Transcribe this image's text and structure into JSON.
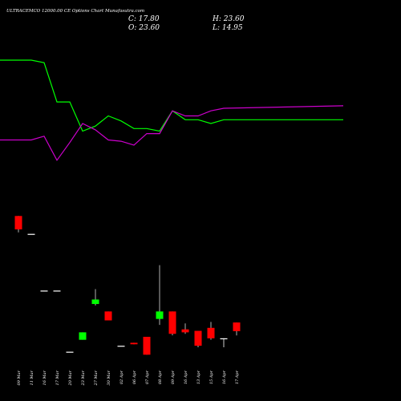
{
  "header": {
    "title": "ULTRACEMCO 12000.00  CE Options  Chart Munafasutra.com",
    "open_label": "O: 23.60",
    "close_label": "C: 17.80",
    "high_label": "H: 23.60",
    "low_label": "L: 14.95"
  },
  "chart_data": {
    "type": "candlestick",
    "title": "ULTRACEMCO 12000.00  CE Options  Chart Munafasutra.com",
    "xlabel": "",
    "ylabel": "",
    "grid": false,
    "categories": [
      "09 Mar",
      "11 Mar",
      "16 Mar",
      "17 Mar",
      "20 Mar",
      "23 Mar",
      "27 Mar",
      "30 Mar",
      "02 Apr",
      "06 Apr",
      "07 Apr",
      "08 Apr",
      "09 Apr",
      "16 Apr",
      "13 Apr",
      "15 Apr",
      "16 Apr",
      "17 Apr"
    ],
    "candles": [
      {
        "open": 95,
        "close": 86,
        "high": 95,
        "low": 84,
        "color": "#ff0000"
      },
      {
        "open": 83,
        "close": 83,
        "high": 83,
        "low": 83,
        "color": "#ffffff"
      },
      {
        "open": 45,
        "close": 45,
        "high": 45,
        "low": 45,
        "color": "#ffffff"
      },
      {
        "open": 45,
        "close": 45,
        "high": 45,
        "low": 45,
        "color": "#ffffff"
      },
      {
        "open": 4,
        "close": 4,
        "high": 4,
        "low": 4,
        "color": "#ffffff"
      },
      {
        "open": 12,
        "close": 17,
        "high": 17,
        "low": 12,
        "color": "#00ff00"
      },
      {
        "open": 36,
        "close": 39,
        "high": 46,
        "low": 35,
        "color": "#00ff00"
      },
      {
        "open": 31,
        "close": 25,
        "high": 31,
        "low": 25,
        "color": "#ff0000"
      },
      {
        "open": 8,
        "close": 8,
        "high": 8,
        "low": 8,
        "color": "#ffffff"
      },
      {
        "open": 10,
        "close": 9,
        "high": 10,
        "low": 9,
        "color": "#ff0000"
      },
      {
        "open": 14,
        "close": 2,
        "high": 14,
        "low": 2,
        "color": "#ff0000"
      },
      {
        "open": 26,
        "close": 31,
        "high": 62,
        "low": 22,
        "color": "#00ff00"
      },
      {
        "open": 31,
        "close": 16,
        "high": 31,
        "low": 15,
        "color": "#ff0000"
      },
      {
        "open": 19,
        "close": 17,
        "high": 23,
        "low": 16,
        "color": "#ff0000"
      },
      {
        "open": 18,
        "close": 8,
        "high": 18,
        "low": 7,
        "color": "#ff0000"
      },
      {
        "open": 20,
        "close": 13,
        "high": 24,
        "low": 12,
        "color": "#ff0000"
      },
      {
        "open": 13,
        "close": 13,
        "high": 13,
        "low": 7,
        "color": "#ffffff"
      },
      {
        "open": 23.6,
        "close": 17.8,
        "high": 23.6,
        "low": 14.95,
        "color": "#ff0000"
      }
    ],
    "ylim": [
      0,
      100
    ],
    "lines": [
      {
        "color": "#00ff00",
        "values": [
          100,
          100,
          98,
          67,
          67,
          44,
          48,
          56,
          52,
          46,
          46,
          44,
          60,
          53,
          53,
          50,
          53,
          53
        ]
      },
      {
        "color": "#cc00cc",
        "values": [
          37,
          37,
          40,
          21,
          35,
          50,
          45,
          37,
          36,
          33,
          42,
          42,
          60,
          56,
          56,
          60,
          62,
          64
        ]
      }
    ],
    "lines_ylim": [
      0,
      100
    ]
  }
}
